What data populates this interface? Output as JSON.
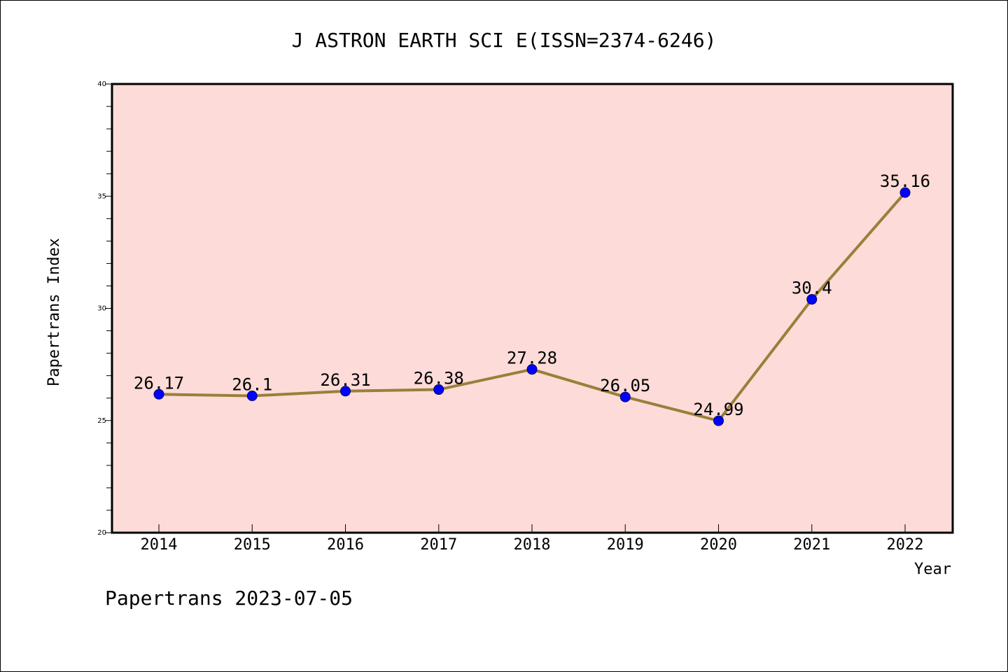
{
  "colors": {
    "plot_background": "#fddbd8",
    "line": "#9a7f3a",
    "marker": "#0000ff",
    "axis": "#000000"
  },
  "chart_data": {
    "type": "line",
    "title": "J ASTRON EARTH SCI E(ISSN=2374-6246)",
    "xlabel": "Year",
    "ylabel": "Papertrans Index",
    "categories": [
      "2014",
      "2015",
      "2016",
      "2017",
      "2018",
      "2019",
      "2020",
      "2021",
      "2022"
    ],
    "series": [
      {
        "values": [
          26.17,
          26.1,
          26.31,
          26.38,
          27.28,
          26.05,
          24.99,
          30.4,
          35.16
        ],
        "labels": [
          "26.17",
          "26.1",
          "26.31",
          "26.38",
          "27.28",
          "26.05",
          "24.99",
          "30.4",
          "35.16"
        ]
      }
    ],
    "ylim": [
      20,
      40
    ],
    "yticks": [
      "20",
      "25",
      "30",
      "35",
      "40"
    ],
    "grid": false,
    "legend": "none"
  },
  "footer": {
    "text": "Papertrans 2023-07-05"
  }
}
